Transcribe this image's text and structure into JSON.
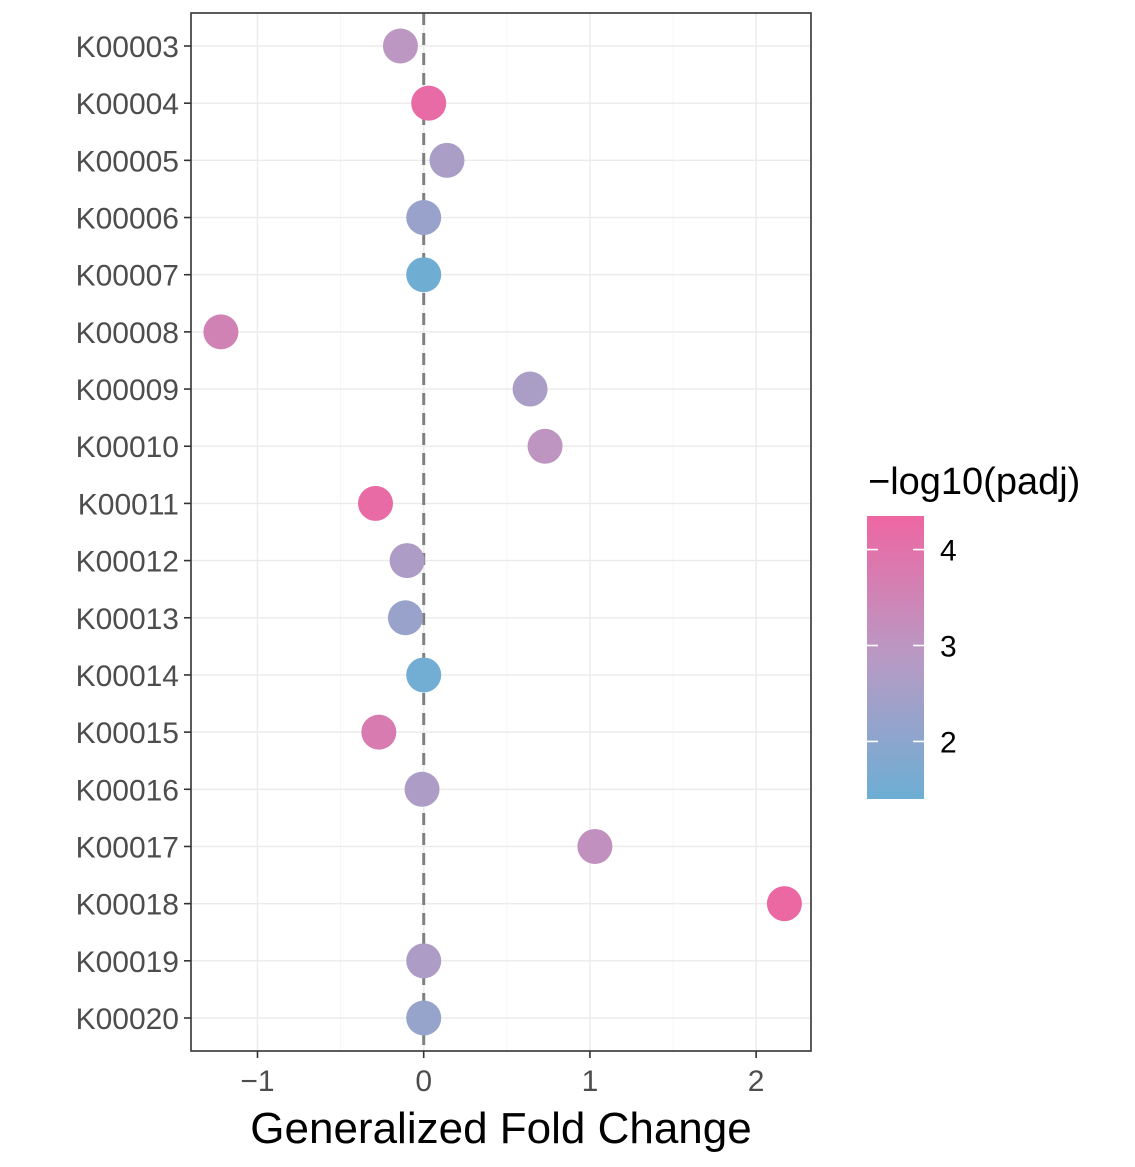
{
  "chart_data": {
    "type": "scatter",
    "xlabel": "Generalized Fold Change",
    "ylabel": "",
    "xlim": [
      -1.4,
      2.33
    ],
    "xticks": [
      -1,
      0,
      1,
      2
    ],
    "xtick_labels": [
      "−1",
      "0",
      "1",
      "2"
    ],
    "reference_line_x": 0,
    "grid": true,
    "categories": [
      "K00003",
      "K00004",
      "K00005",
      "K00006",
      "K00007",
      "K00008",
      "K00009",
      "K00010",
      "K00011",
      "K00012",
      "K00013",
      "K00014",
      "K00015",
      "K00016",
      "K00017",
      "K00018",
      "K00019",
      "K00020"
    ],
    "x": [
      -0.14,
      0.03,
      0.14,
      0.0,
      0.0,
      -1.22,
      0.64,
      0.73,
      -0.29,
      -0.1,
      -0.11,
      0.0,
      -0.27,
      -0.01,
      1.03,
      2.17,
      0.0,
      0.0
    ],
    "color_values": [
      2.95,
      4.2,
      2.6,
      2.25,
      1.45,
      3.55,
      2.6,
      3.05,
      4.2,
      2.65,
      2.25,
      1.5,
      3.75,
      2.65,
      3.15,
      4.3,
      2.65,
      2.2
    ],
    "legend": {
      "title": "−log10(padj)",
      "position": "right",
      "range": [
        1.4,
        4.35
      ],
      "ticks": [
        2,
        3,
        4
      ],
      "tick_labels": [
        "2",
        "3",
        "4"
      ],
      "color_low": "#6daed4",
      "color_high": "#ee66a2"
    }
  }
}
